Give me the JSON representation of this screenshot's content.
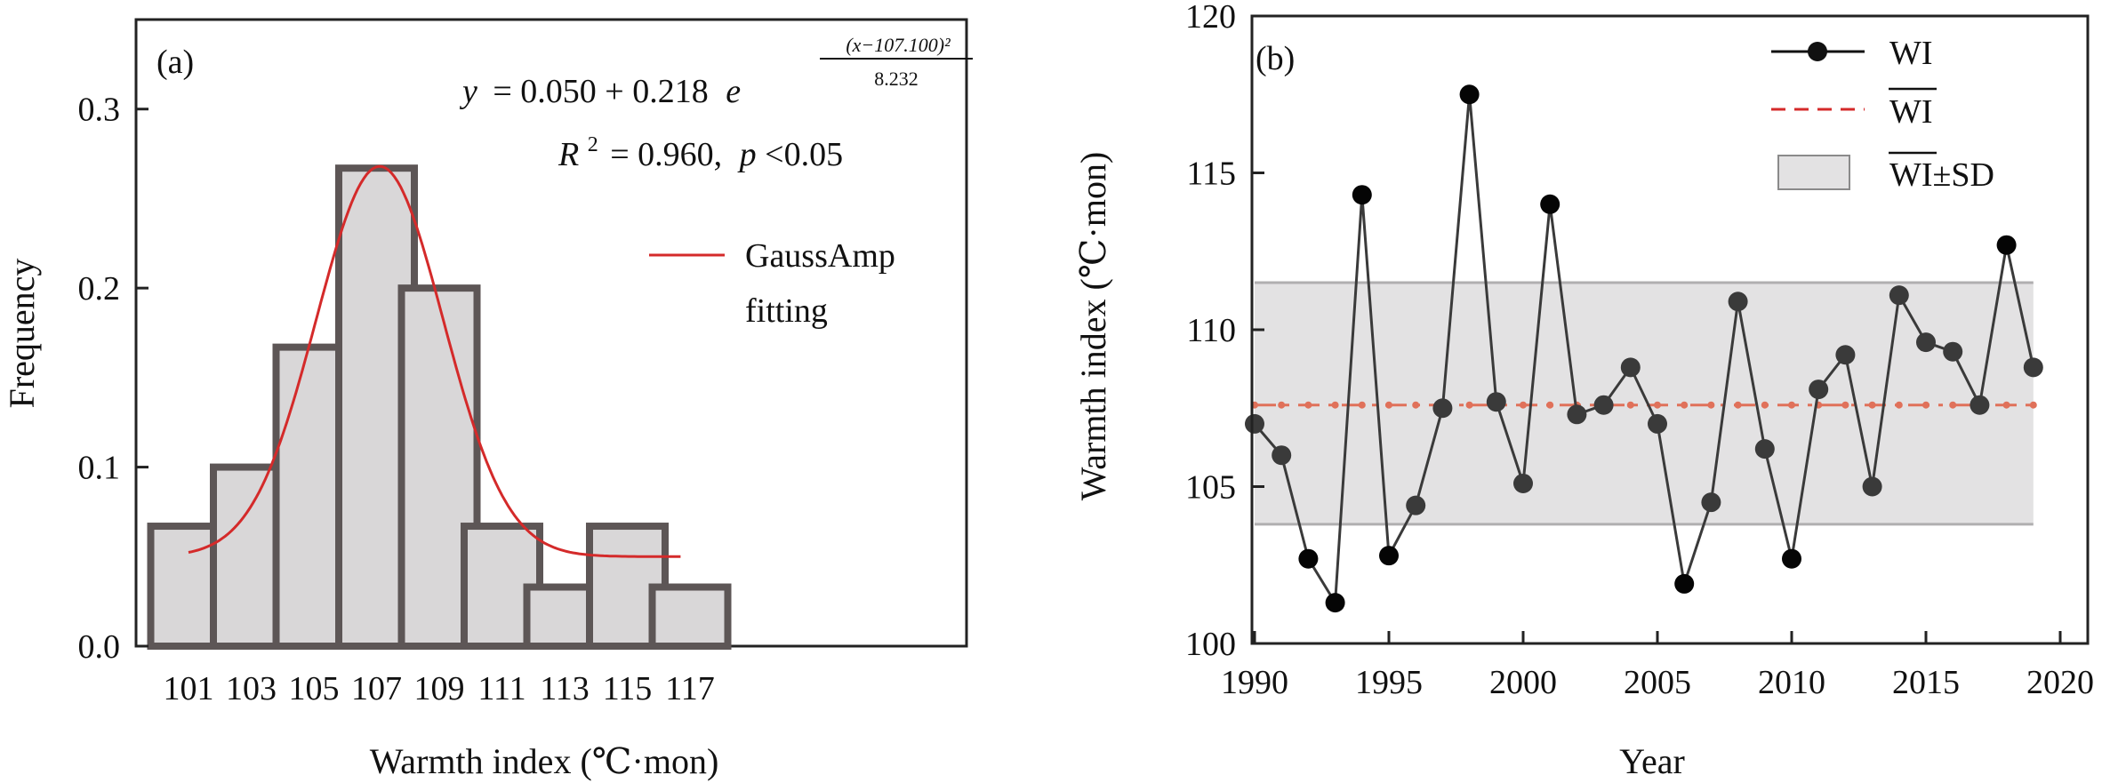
{
  "chart_data": [
    {
      "panel_label": "(a)",
      "type": "bar",
      "xlabel": "Warmth index (℃·mon)",
      "ylabel": "Frequency",
      "categories": [
        "101",
        "103",
        "105",
        "107",
        "109",
        "111",
        "113",
        "115",
        "117"
      ],
      "values": [
        0.067,
        0.1,
        0.167,
        0.267,
        0.2,
        0.067,
        0.033,
        0.067,
        0.033
      ],
      "ylim": [
        0,
        0.35
      ],
      "yticks": [
        "0.0",
        "0.1",
        "0.2",
        "0.3"
      ],
      "fit": {
        "name": "GaussAmp fitting",
        "legend_lines": [
          "GaussAmp",
          "fitting"
        ],
        "y0": 0.05,
        "A": 0.218,
        "xc": 107.1,
        "denominator": 8.232,
        "x_range": [
          101,
          116.7
        ],
        "color": "#d42a2a"
      },
      "equation": {
        "lhs": "y",
        "rhs": "= 0.050 + 0.218",
        "base": "e",
        "exp_numerator": "(x−107.100)²",
        "exp_denominator": "8.232"
      },
      "stats": {
        "r_symbol": "R",
        "r_sup": "2",
        "r_value": "= 0.960,",
        "p_symbol": "p",
        "p_value": "<0.05"
      },
      "bar_fill": "#d9d7d8",
      "bar_stroke": "#5d5656"
    },
    {
      "panel_label": "(b)",
      "type": "line",
      "xlabel": "Year",
      "ylabel": "Warmth index (℃·mon)",
      "xlim": [
        1990,
        2020
      ],
      "ylim": [
        100,
        120
      ],
      "xticks": [
        "1990",
        "1995",
        "2000",
        "2005",
        "2010",
        "2015",
        "2020"
      ],
      "yticks": [
        "100",
        "105",
        "110",
        "115",
        "120"
      ],
      "series": [
        {
          "name": "WI",
          "x": [
            1990,
            1991,
            1992,
            1993,
            1994,
            1995,
            1996,
            1997,
            1998,
            1999,
            2000,
            2001,
            2002,
            2003,
            2004,
            2005,
            2006,
            2007,
            2008,
            2009,
            2010,
            2011,
            2012,
            2013,
            2014,
            2015,
            2016,
            2017,
            2018,
            2019
          ],
          "y": [
            107.0,
            106.0,
            102.7,
            101.3,
            114.3,
            102.8,
            104.4,
            107.5,
            117.5,
            107.7,
            105.1,
            114.0,
            107.3,
            107.6,
            108.8,
            107.0,
            101.9,
            104.5,
            110.9,
            106.2,
            102.7,
            108.1,
            109.2,
            105.0,
            111.1,
            109.6,
            109.3,
            107.6,
            112.7,
            108.8
          ],
          "color": "#000000"
        }
      ],
      "mean": {
        "value": 107.6,
        "legend": "WI",
        "color": "#e0715a",
        "legend_color": "#d42a2a"
      },
      "sd_band": {
        "range": [
          103.8,
          111.5
        ],
        "legend": "WI±SD",
        "fill": "#e3e2e3",
        "edge": "#b0afb0"
      },
      "legend_position": "top-right"
    }
  ]
}
